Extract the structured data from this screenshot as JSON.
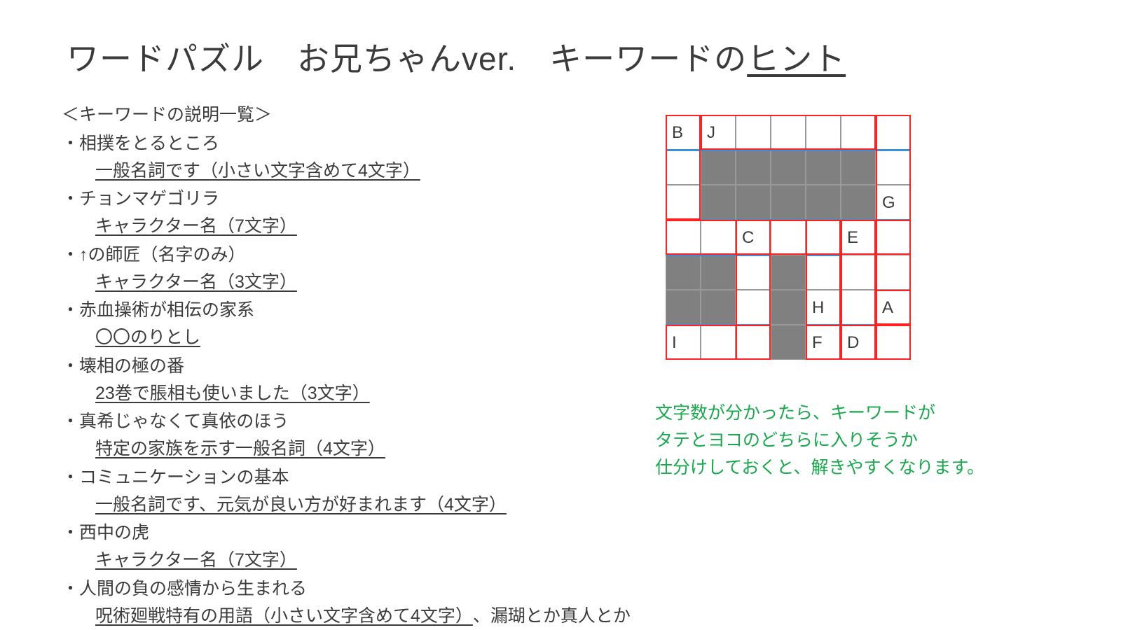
{
  "title": {
    "main": "ワードパズル　お兄ちゃんver.　キーワードの",
    "underlined": "ヒント"
  },
  "clues": {
    "heading": "＜キーワードの説明一覧＞",
    "items": [
      {
        "clue": "・相撲をとるところ",
        "hint": "一般名詞です（小さい文字含めて4文字）"
      },
      {
        "clue": "・チョンマゲゴリラ",
        "hint": "キャラクター名（7文字）"
      },
      {
        "clue": "・↑の師匠（名字のみ）",
        "hint": "キャラクター名（3文字）"
      },
      {
        "clue": "・赤血操術が相伝の家系",
        "hint": "〇〇のりとし"
      },
      {
        "clue": "・壊相の極の番",
        "hint": "23巻で脹相も使いました（3文字）"
      },
      {
        "clue": "・真希じゃなくて真依のほう",
        "hint": "特定の家族を示す一般名詞（4文字）"
      },
      {
        "clue": "・コミュニケーションの基本",
        "hint": "一般名詞です、元気が良い方が好まれます（4文字）"
      },
      {
        "clue": "・西中の虎",
        "hint": "キャラクター名（7文字）"
      },
      {
        "clue": "・人間の負の感情から生まれる",
        "hint": "呪術廻戦特有の用語（小さい文字含めて4文字）",
        "extra": "、漏瑚とか真人とか"
      }
    ]
  },
  "tip": {
    "line1": "文字数が分かったら、キーワードが",
    "line2": "タテとヨコのどちらに入りそうか",
    "line3": "仕分けしておくと、解きやすくなります。"
  },
  "grid": {
    "cell_size": 50,
    "cols": 7,
    "rows": 7,
    "background_color": "#ffffff",
    "block_color": "#808080",
    "border_color": "#999999",
    "blue_separator_color": "#3b8ed8",
    "word_border_color": "#ff2020",
    "blocks": [
      {
        "r": 1,
        "c": 1
      },
      {
        "r": 1,
        "c": 2
      },
      {
        "r": 1,
        "c": 3
      },
      {
        "r": 1,
        "c": 4
      },
      {
        "r": 1,
        "c": 5
      },
      {
        "r": 2,
        "c": 1
      },
      {
        "r": 2,
        "c": 2
      },
      {
        "r": 2,
        "c": 3
      },
      {
        "r": 2,
        "c": 4
      },
      {
        "r": 2,
        "c": 5
      },
      {
        "r": 4,
        "c": 0
      },
      {
        "r": 4,
        "c": 1
      },
      {
        "r": 4,
        "c": 3
      },
      {
        "r": 5,
        "c": 0
      },
      {
        "r": 5,
        "c": 1
      },
      {
        "r": 5,
        "c": 3
      },
      {
        "r": 6,
        "c": 3
      }
    ],
    "labels": [
      {
        "r": 0,
        "c": 0,
        "t": "B"
      },
      {
        "r": 0,
        "c": 1,
        "t": "J"
      },
      {
        "r": 2,
        "c": 6,
        "t": "G"
      },
      {
        "r": 3,
        "c": 2,
        "t": "C"
      },
      {
        "r": 3,
        "c": 5,
        "t": "E"
      },
      {
        "r": 5,
        "c": 4,
        "t": "H"
      },
      {
        "r": 5,
        "c": 6,
        "t": "A"
      },
      {
        "r": 6,
        "c": 0,
        "t": "I"
      },
      {
        "r": 6,
        "c": 4,
        "t": "F"
      },
      {
        "r": 6,
        "c": 5,
        "t": "D"
      }
    ],
    "blue_separators": [
      {
        "c0": 0,
        "c1": 7,
        "r": 1
      },
      {
        "c0": 0,
        "c1": 7,
        "r": 3
      },
      {
        "c0": 0,
        "c1": 3,
        "r": 4
      },
      {
        "c0": 4,
        "c1": 5,
        "r": 4
      },
      {
        "c0": 0,
        "c1": 3,
        "r": 6
      },
      {
        "c0": 4,
        "c1": 7,
        "r": 6
      }
    ],
    "word_boxes": [
      {
        "r": 0,
        "c": 0,
        "w": 1,
        "h": 3
      },
      {
        "r": 0,
        "c": 1,
        "w": 5,
        "h": 1
      },
      {
        "r": 0,
        "c": 6,
        "w": 1,
        "h": 6
      },
      {
        "r": 3,
        "c": 0,
        "w": 7,
        "h": 1
      },
      {
        "r": 3,
        "c": 2,
        "w": 1,
        "h": 4
      },
      {
        "r": 3,
        "c": 4,
        "w": 1,
        "h": 4
      },
      {
        "r": 3,
        "c": 5,
        "w": 1,
        "h": 4
      },
      {
        "r": 5,
        "c": 6,
        "w": 1,
        "h": 2
      },
      {
        "r": 6,
        "c": 0,
        "w": 3,
        "h": 1
      },
      {
        "r": 6,
        "c": 4,
        "w": 3,
        "h": 1
      }
    ]
  }
}
